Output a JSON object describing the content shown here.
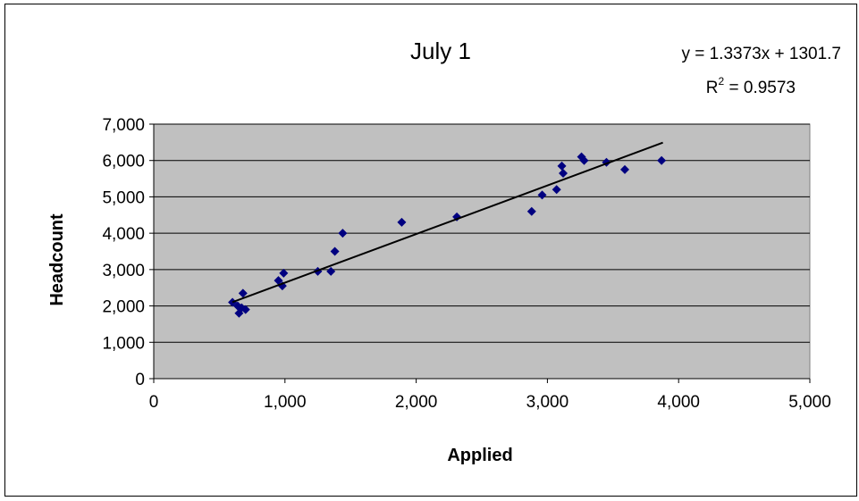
{
  "chart_data": {
    "type": "scatter",
    "title": "July 1",
    "xlabel": "Applied",
    "ylabel": "Headcount",
    "xlim": [
      0,
      5000
    ],
    "ylim": [
      0,
      7000
    ],
    "x_ticks": [
      "0",
      "1,000",
      "2,000",
      "3,000",
      "4,000",
      "5,000"
    ],
    "y_ticks": [
      "0",
      "1,000",
      "2,000",
      "3,000",
      "4,000",
      "5,000",
      "6,000",
      "7,000"
    ],
    "grid": "horizontal",
    "plot_background": "#c0c0c0",
    "marker_color": "#000080",
    "trendline": {
      "equation": "y = 1.3373x + 1301.7",
      "r2_prefix": "R",
      "r2_exp": "2",
      "r2_value": " = 0.9573",
      "slope": 1.3373,
      "intercept": 1301.7,
      "x_range": [
        600,
        3880
      ]
    },
    "points": [
      {
        "x": 600,
        "y": 2100
      },
      {
        "x": 640,
        "y": 2000
      },
      {
        "x": 650,
        "y": 1800
      },
      {
        "x": 670,
        "y": 1950
      },
      {
        "x": 700,
        "y": 1900
      },
      {
        "x": 680,
        "y": 2350
      },
      {
        "x": 950,
        "y": 2700
      },
      {
        "x": 980,
        "y": 2550
      },
      {
        "x": 990,
        "y": 2900
      },
      {
        "x": 1250,
        "y": 2950
      },
      {
        "x": 1350,
        "y": 2950
      },
      {
        "x": 1380,
        "y": 3500
      },
      {
        "x": 1440,
        "y": 4000
      },
      {
        "x": 1890,
        "y": 4300
      },
      {
        "x": 2310,
        "y": 4450
      },
      {
        "x": 2880,
        "y": 4600
      },
      {
        "x": 2960,
        "y": 5050
      },
      {
        "x": 3070,
        "y": 5200
      },
      {
        "x": 3110,
        "y": 5850
      },
      {
        "x": 3120,
        "y": 5650
      },
      {
        "x": 3260,
        "y": 6100
      },
      {
        "x": 3280,
        "y": 6000
      },
      {
        "x": 3450,
        "y": 5950
      },
      {
        "x": 3590,
        "y": 5750
      },
      {
        "x": 3870,
        "y": 6000
      }
    ]
  }
}
